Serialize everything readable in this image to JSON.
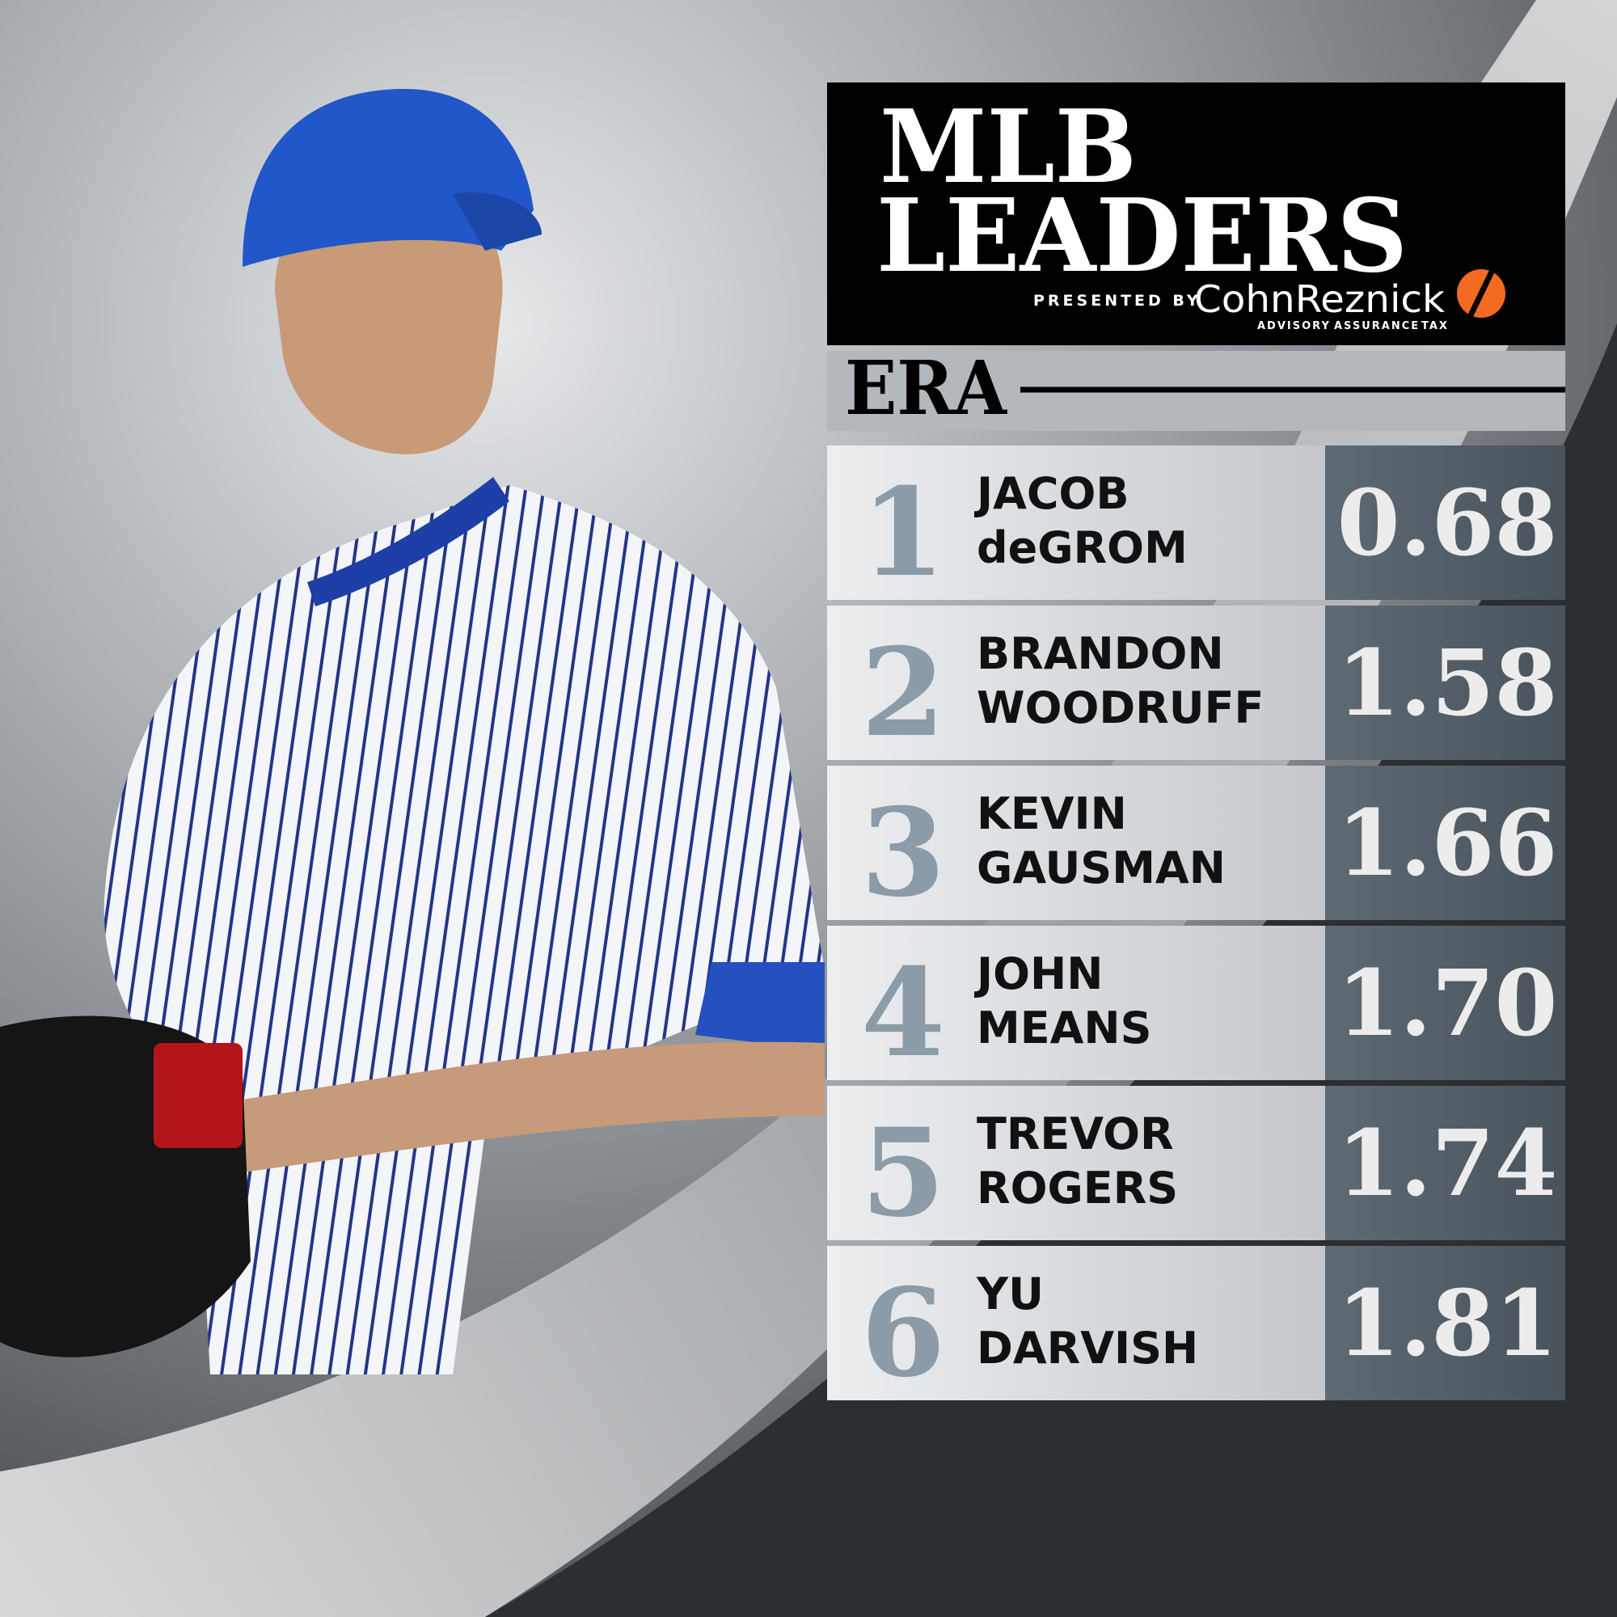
{
  "header": {
    "title_line1": "MLB",
    "title_line2": "LEADERS",
    "presented_by": "PRESENTED BY",
    "sponsor": "CohnReznick",
    "sponsor_tagline": [
      "ADVISORY",
      "ASSURANCE",
      "TAX"
    ]
  },
  "stat": "ERA",
  "rows": [
    {
      "rank": 1,
      "first": "JACOB",
      "last": "deGROM",
      "value": "0.68"
    },
    {
      "rank": 2,
      "first": "BRANDON",
      "last": "WOODRUFF",
      "value": "1.58"
    },
    {
      "rank": 3,
      "first": "KEVIN",
      "last": "GAUSMAN",
      "value": "1.66"
    },
    {
      "rank": 4,
      "first": "JOHN",
      "last": "MEANS",
      "value": "1.70"
    },
    {
      "rank": 5,
      "first": "TREVOR",
      "last": "ROGERS",
      "value": "1.74"
    },
    {
      "rank": 6,
      "first": "YU",
      "last": "DARVISH",
      "value": "1.81"
    }
  ]
}
